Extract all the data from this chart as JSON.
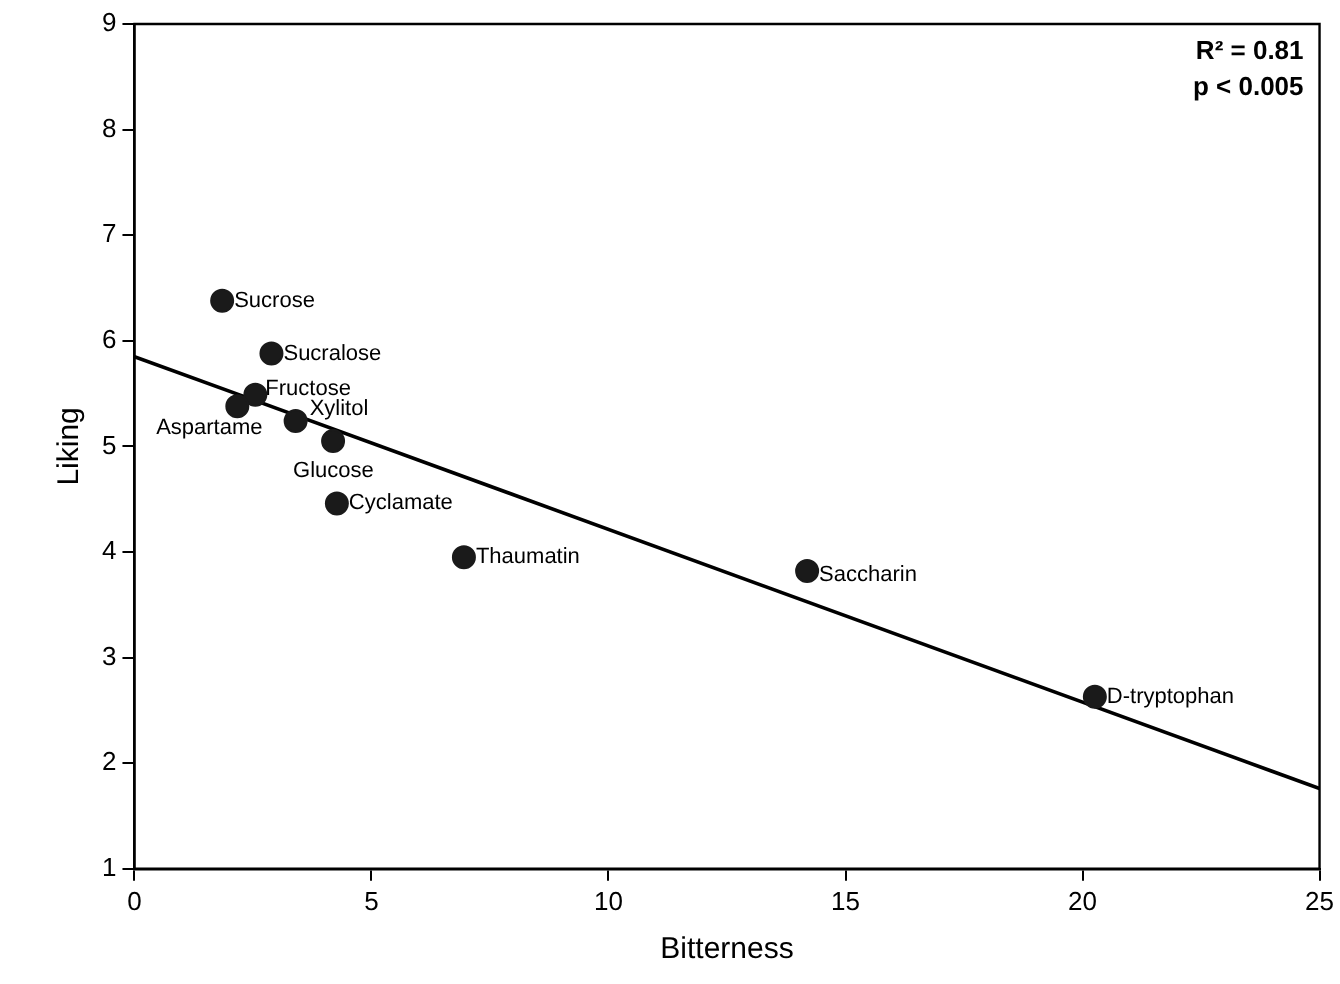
{
  "chart_data": {
    "type": "scatter",
    "xlabel": "Bitterness",
    "ylabel": "Liking",
    "xlim": [
      0,
      25
    ],
    "xticks": [
      0,
      5,
      10,
      15,
      20,
      25
    ],
    "ylim": [
      1,
      9
    ],
    "yticks": [
      1,
      2,
      3,
      4,
      5,
      6,
      7,
      8,
      9
    ],
    "grid": false,
    "legend": false,
    "series": [
      {
        "marker": "circle",
        "color": "#1a1a1a",
        "x": [
          1.85,
          2.89,
          2.55,
          2.17,
          3.4,
          4.19,
          4.27,
          6.95,
          14.19,
          20.26
        ],
        "values": [
          6.38,
          5.88,
          5.49,
          5.38,
          5.24,
          5.05,
          4.46,
          3.95,
          3.82,
          2.63
        ]
      },
      {
        "type": "line",
        "color": "#000000",
        "x": [
          0,
          25
        ],
        "values": [
          5.85,
          1.76
        ]
      }
    ],
    "annotations": [
      {
        "text": "Sucrose",
        "x": 1.85,
        "y": 6.38
      },
      {
        "text": "Sucralose",
        "x": 2.89,
        "y": 5.88
      },
      {
        "text": "Fructose",
        "x": 2.55,
        "y": 5.49
      },
      {
        "text": "Aspartame",
        "x": 2.17,
        "y": 5.38
      },
      {
        "text": "Xylitol",
        "x": 3.4,
        "y": 5.24
      },
      {
        "text": "Glucose",
        "x": 4.19,
        "y": 5.05
      },
      {
        "text": "Cyclamate",
        "x": 4.27,
        "y": 4.46
      },
      {
        "text": "Thaumatin",
        "x": 6.95,
        "y": 3.95
      },
      {
        "text": "Saccharin",
        "x": 14.19,
        "y": 3.82
      },
      {
        "text": "D-tryptophan",
        "x": 20.26,
        "y": 2.63
      },
      "R² = 0.81",
      "p < 0.005"
    ]
  }
}
